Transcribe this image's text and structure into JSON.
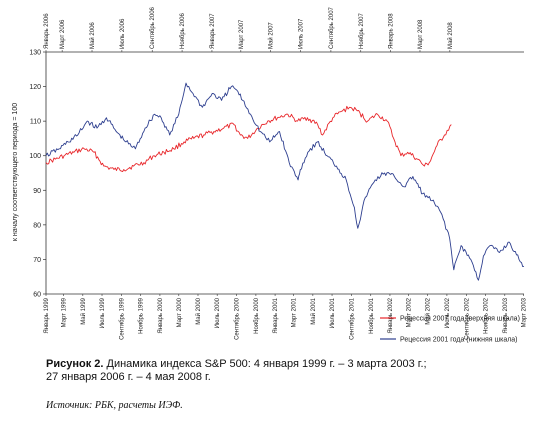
{
  "chart_data": {
    "type": "line",
    "ylabel": "к началу соответствующего периода = 100",
    "ylim": [
      60,
      130
    ],
    "yticks": [
      60,
      70,
      80,
      90,
      100,
      110,
      120,
      130
    ],
    "grid": false,
    "legend_position": "bottom-right",
    "top_axis_labels": [
      "Январь 2006",
      "Март 2006",
      "Май 2006",
      "Июль 2006",
      "Сентябрь 2006",
      "Ноябрь 2006",
      "Январь 2007",
      "Март 2007",
      "Май 2007",
      "Июль 2007",
      "Сентябрь 2007",
      "Ноябрь 2007",
      "Январь 2008",
      "Март 2008",
      "Май 2008"
    ],
    "bottom_axis_labels": [
      "Январь 1999",
      "Март 1999",
      "Май 1999",
      "Июль 1999",
      "Сентябрь 1999",
      "Ноябрь 1999",
      "Январь 2000",
      "Март 2000",
      "Май 2000",
      "Июль 2000",
      "Сентябрь 2000",
      "Ноябрь 2000",
      "Январь 2001",
      "Март 2001",
      "Май 2001",
      "Июль 2001",
      "Сентябрь 2001",
      "Ноябрь 2001",
      "Январь 2002",
      "Март 2002",
      "Май 2002",
      "Июль 2002",
      "Сентябрь 2002",
      "Ноябрь 2002",
      "Январь 2003",
      "Март 2003"
    ],
    "series": [
      {
        "name": "Рецессия 2007 года (верхняя шкала)",
        "color": "#e8262a",
        "axis": "top",
        "x": [
          "2006-01-27",
          "2006-02-15",
          "2006-03-05",
          "2006-03-25",
          "2006-04-15",
          "2006-05-05",
          "2006-05-25",
          "2006-06-15",
          "2006-07-05",
          "2006-07-25",
          "2006-08-15",
          "2006-09-05",
          "2006-09-25",
          "2006-10-15",
          "2006-11-05",
          "2006-11-25",
          "2006-12-15",
          "2007-01-05",
          "2007-01-25",
          "2007-02-15",
          "2007-02-28",
          "2007-03-15",
          "2007-04-05",
          "2007-04-25",
          "2007-05-15",
          "2007-06-05",
          "2007-06-25",
          "2007-07-15",
          "2007-08-05",
          "2007-08-15",
          "2007-09-05",
          "2007-09-25",
          "2007-10-09",
          "2007-10-25",
          "2007-11-15",
          "2007-12-05",
          "2007-12-25",
          "2008-01-10",
          "2008-01-22",
          "2008-02-05",
          "2008-02-25",
          "2008-03-10",
          "2008-03-20",
          "2008-04-05",
          "2008-04-20",
          "2008-05-04"
        ],
        "values": [
          98,
          99,
          100,
          101,
          102,
          101,
          97,
          96,
          96,
          97,
          98,
          100,
          101,
          102,
          104,
          105,
          106,
          107,
          108,
          109,
          106,
          105,
          108,
          110,
          111,
          112,
          110,
          111,
          109,
          106,
          111,
          113,
          114,
          113,
          110,
          112,
          110,
          104,
          100,
          101,
          99,
          97,
          98,
          103,
          106,
          109
        ]
      },
      {
        "name": "Рецессия 2001 года (нижняя шкала)",
        "color": "#2e3f8f",
        "axis": "bottom",
        "x": [
          "1999-01-04",
          "1999-02-15",
          "1999-03-15",
          "1999-04-15",
          "1999-05-15",
          "1999-06-15",
          "1999-07-15",
          "1999-08-15",
          "1999-09-15",
          "1999-10-15",
          "1999-11-15",
          "1999-12-15",
          "2000-01-05",
          "2000-02-01",
          "2000-03-01",
          "2000-03-24",
          "2000-04-15",
          "2000-05-15",
          "2000-06-15",
          "2000-07-15",
          "2000-08-15",
          "2000-09-01",
          "2000-09-20",
          "2000-10-15",
          "2000-11-15",
          "2000-12-15",
          "2001-01-15",
          "2001-02-15",
          "2001-03-15",
          "2001-03-22",
          "2001-04-15",
          "2001-05-15",
          "2001-06-15",
          "2001-07-15",
          "2001-08-15",
          "2001-09-10",
          "2001-09-21",
          "2001-10-15",
          "2001-11-15",
          "2001-12-15",
          "2002-01-15",
          "2002-02-15",
          "2002-03-15",
          "2002-04-15",
          "2002-05-15",
          "2002-06-15",
          "2002-07-10",
          "2002-07-23",
          "2002-08-15",
          "2002-09-15",
          "2002-10-09",
          "2002-10-25",
          "2002-11-15",
          "2002-12-15",
          "2003-01-15",
          "2003-02-15",
          "2003-03-03"
        ],
        "values": [
          100,
          102,
          104,
          106,
          110,
          108,
          111,
          107,
          104,
          102,
          108,
          112,
          111,
          106,
          112,
          121,
          118,
          114,
          118,
          116,
          120,
          119,
          116,
          112,
          107,
          104,
          107,
          98,
          93,
          96,
          101,
          104,
          100,
          97,
          93,
          85,
          79,
          88,
          93,
          95,
          94,
          91,
          94,
          89,
          87,
          83,
          76,
          67,
          74,
          70,
          64,
          71,
          74,
          72,
          75,
          70,
          68
        ]
      }
    ]
  }
}
